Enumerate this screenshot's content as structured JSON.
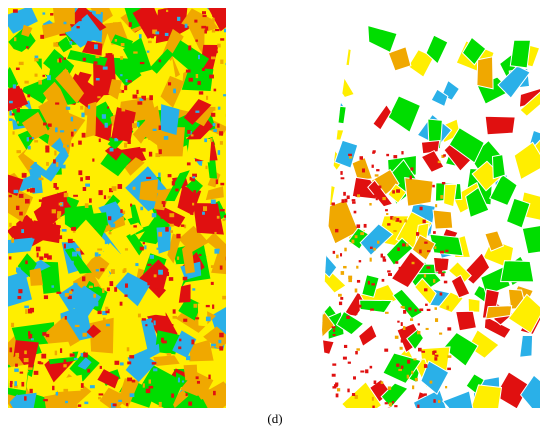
{
  "figure": {
    "caption": "(d)"
  }
}
